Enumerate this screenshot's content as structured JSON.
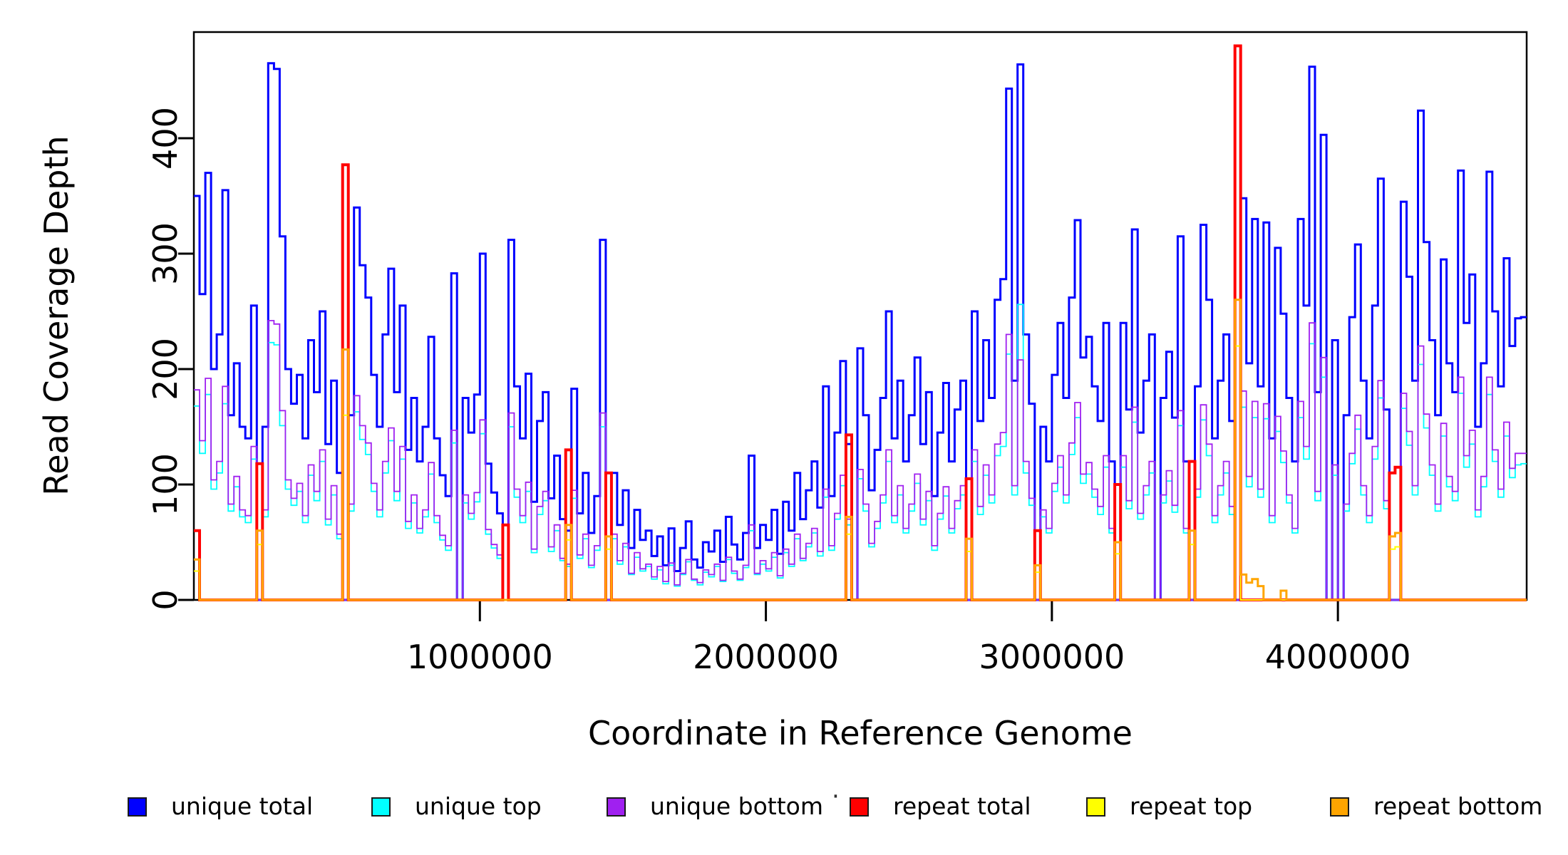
{
  "figure": {
    "background": "#ffffff"
  },
  "legend": {
    "stray_dot": {
      "symbol": "·"
    }
  },
  "chart_data": {
    "type": "line",
    "subtype": "step-coverage-histogram",
    "title": "",
    "xlabel": "Coordinate in Reference Genome",
    "ylabel": "Read Coverage Depth",
    "grid": false,
    "legend_position": "bottom",
    "xlim": [
      0,
      4660000
    ],
    "ylim": [
      0,
      492
    ],
    "bin_size_bp": 20000,
    "x_start_bp": 0,
    "x_tick_values": [
      1000000,
      2000000,
      3000000,
      4000000
    ],
    "x_tick_labels": [
      "1000000",
      "2000000",
      "3000000",
      "4000000"
    ],
    "y_tick_values": [
      0,
      100,
      200,
      300,
      400
    ],
    "y_tick_labels": [
      "0",
      "100",
      "200",
      "300",
      "400"
    ],
    "series": [
      {
        "name": "unique total",
        "color": "#0000FF",
        "line_width": 3,
        "values": [
          350,
          265,
          370,
          200,
          230,
          355,
          160,
          205,
          150,
          140,
          255,
          0,
          150,
          465,
          460,
          315,
          200,
          170,
          195,
          140,
          225,
          180,
          250,
          135,
          190,
          110,
          0,
          160,
          340,
          290,
          262,
          195,
          150,
          230,
          287,
          180,
          255,
          130,
          175,
          120,
          150,
          228,
          140,
          108,
          90,
          283,
          0,
          175,
          145,
          178,
          300,
          118,
          93,
          75,
          0,
          312,
          185,
          140,
          196,
          85,
          155,
          180,
          88,
          125,
          70,
          60,
          183,
          75,
          110,
          58,
          90,
          312,
          0,
          110,
          65,
          95,
          45,
          78,
          52,
          60,
          38,
          55,
          30,
          62,
          25,
          45,
          68,
          35,
          28,
          50,
          42,
          60,
          33,
          72,
          48,
          35,
          58,
          125,
          45,
          65,
          52,
          78,
          40,
          85,
          60,
          110,
          70,
          95,
          120,
          80,
          185,
          90,
          145,
          207,
          135,
          0,
          218,
          160,
          95,
          130,
          175,
          250,
          140,
          190,
          120,
          160,
          210,
          135,
          180,
          90,
          145,
          188,
          120,
          165,
          190,
          0,
          250,
          155,
          225,
          175,
          260,
          278,
          443,
          190,
          464,
          230,
          170,
          0,
          150,
          120,
          195,
          240,
          175,
          262,
          329,
          210,
          228,
          185,
          155,
          240,
          120,
          0,
          240,
          165,
          321,
          145,
          190,
          230,
          0,
          175,
          215,
          158,
          315,
          120,
          0,
          185,
          325,
          260,
          140,
          190,
          230,
          155,
          0,
          348,
          205,
          330,
          185,
          327,
          140,
          305,
          248,
          175,
          120,
          330,
          255,
          462,
          180,
          403,
          0,
          225,
          0,
          160,
          245,
          308,
          190,
          140,
          255,
          365,
          165,
          0,
          0,
          345,
          280,
          190,
          424,
          310,
          225,
          160,
          295,
          205,
          180,
          372,
          240,
          282,
          150,
          205,
          371,
          250,
          185,
          296,
          220,
          244,
          245
        ]
      },
      {
        "name": "unique top",
        "color": "#00FFFF",
        "line_width": 1.8,
        "values": [
          168,
          127,
          178,
          96,
          110,
          170,
          77,
          98,
          72,
          67,
          122,
          0,
          72,
          223,
          221,
          151,
          96,
          82,
          94,
          67,
          108,
          86,
          120,
          65,
          91,
          53,
          0,
          77,
          163,
          139,
          126,
          94,
          72,
          110,
          138,
          86,
          122,
          62,
          84,
          58,
          72,
          109,
          67,
          52,
          43,
          136,
          0,
          84,
          70,
          85,
          144,
          57,
          45,
          36,
          0,
          150,
          89,
          67,
          94,
          41,
          74,
          86,
          42,
          60,
          34,
          29,
          88,
          36,
          53,
          28,
          43,
          150,
          0,
          53,
          31,
          46,
          22,
          37,
          25,
          29,
          18,
          26,
          14,
          30,
          12,
          22,
          33,
          17,
          13,
          24,
          20,
          29,
          16,
          35,
          23,
          17,
          28,
          60,
          22,
          31,
          25,
          37,
          19,
          41,
          29,
          53,
          34,
          46,
          58,
          38,
          89,
          43,
          70,
          99,
          65,
          0,
          105,
          77,
          46,
          62,
          84,
          120,
          67,
          91,
          58,
          77,
          101,
          65,
          86,
          43,
          70,
          90,
          58,
          79,
          91,
          0,
          120,
          74,
          108,
          84,
          125,
          133,
          213,
          91,
          256,
          110,
          82,
          0,
          72,
          58,
          94,
          115,
          84,
          126,
          158,
          101,
          109,
          89,
          74,
          115,
          58,
          0,
          115,
          79,
          154,
          70,
          91,
          110,
          0,
          84,
          103,
          76,
          151,
          58,
          0,
          89,
          156,
          125,
          67,
          91,
          110,
          74,
          0,
          167,
          98,
          158,
          89,
          157,
          67,
          146,
          119,
          84,
          58,
          158,
          122,
          222,
          86,
          193,
          0,
          108,
          0,
          77,
          118,
          148,
          91,
          67,
          122,
          175,
          79,
          0,
          0,
          166,
          134,
          91,
          204,
          149,
          108,
          77,
          142,
          98,
          86,
          179,
          115,
          135,
          72,
          98,
          178,
          120,
          89,
          142,
          106,
          117,
          118
        ]
      },
      {
        "name": "unique bottom",
        "color": "#A020F0",
        "line_width": 1.8,
        "values": [
          182,
          138,
          192,
          104,
          120,
          185,
          83,
          107,
          78,
          73,
          133,
          0,
          78,
          242,
          239,
          164,
          104,
          88,
          101,
          73,
          117,
          94,
          130,
          70,
          99,
          57,
          0,
          83,
          177,
          151,
          136,
          101,
          78,
          120,
          149,
          94,
          133,
          68,
          91,
          62,
          78,
          119,
          73,
          56,
          47,
          147,
          0,
          91,
          75,
          93,
          156,
          61,
          48,
          39,
          0,
          162,
          96,
          73,
          102,
          44,
          81,
          94,
          46,
          65,
          36,
          31,
          95,
          39,
          57,
          30,
          47,
          162,
          0,
          57,
          34,
          49,
          23,
          41,
          27,
          31,
          20,
          29,
          16,
          32,
          13,
          23,
          35,
          18,
          15,
          26,
          22,
          31,
          17,
          37,
          25,
          18,
          30,
          65,
          23,
          34,
          27,
          41,
          21,
          44,
          31,
          57,
          36,
          49,
          62,
          42,
          96,
          47,
          75,
          108,
          70,
          0,
          113,
          83,
          49,
          68,
          91,
          130,
          73,
          99,
          62,
          83,
          109,
          70,
          94,
          47,
          75,
          98,
          62,
          86,
          99,
          0,
          130,
          81,
          117,
          91,
          135,
          145,
          230,
          99,
          208,
          120,
          88,
          0,
          78,
          62,
          101,
          125,
          91,
          136,
          171,
          109,
          119,
          96,
          81,
          125,
          62,
          0,
          125,
          86,
          167,
          75,
          99,
          120,
          0,
          91,
          112,
          82,
          164,
          62,
          0,
          96,
          169,
          135,
          73,
          99,
          120,
          81,
          0,
          181,
          107,
          172,
          96,
          170,
          73,
          159,
          129,
          91,
          62,
          172,
          133,
          240,
          94,
          210,
          0,
          117,
          0,
          83,
          127,
          160,
          99,
          73,
          133,
          190,
          86,
          0,
          0,
          179,
          146,
          99,
          220,
          161,
          117,
          83,
          153,
          107,
          94,
          193,
          125,
          147,
          78,
          107,
          193,
          130,
          96,
          154,
          114,
          127,
          127
        ]
      },
      {
        "name": "repeat total",
        "color": "#FF0000",
        "line_width": 4,
        "default": 0,
        "values_sparse": {
          "0": 60,
          "11": 118,
          "26": 377,
          "54": 65,
          "65": 130,
          "72": 110,
          "114": 143,
          "135": 105,
          "147": 60,
          "161": 100,
          "174": 120,
          "182": 480,
          "209": 110,
          "210": 115
        }
      },
      {
        "name": "repeat top",
        "color": "#FFFF00",
        "line_width": 2,
        "default": 0,
        "values_sparse": {
          "0": 25,
          "11": 48,
          "26": 160,
          "65": 52,
          "72": 44,
          "114": 57,
          "135": 42,
          "147": 24,
          "161": 40,
          "174": 48,
          "182": 220,
          "209": 44,
          "210": 46
        }
      },
      {
        "name": "repeat bottom",
        "color": "#FFA500",
        "line_width": 3,
        "default": 0,
        "values_sparse": {
          "0": 35,
          "11": 60,
          "26": 217,
          "65": 65,
          "72": 55,
          "114": 72,
          "135": 53,
          "147": 30,
          "161": 50,
          "174": 60,
          "182": 260,
          "183": 22,
          "184": 15,
          "185": 18,
          "186": 12,
          "190": 8,
          "209": 55,
          "210": 58
        }
      }
    ]
  }
}
